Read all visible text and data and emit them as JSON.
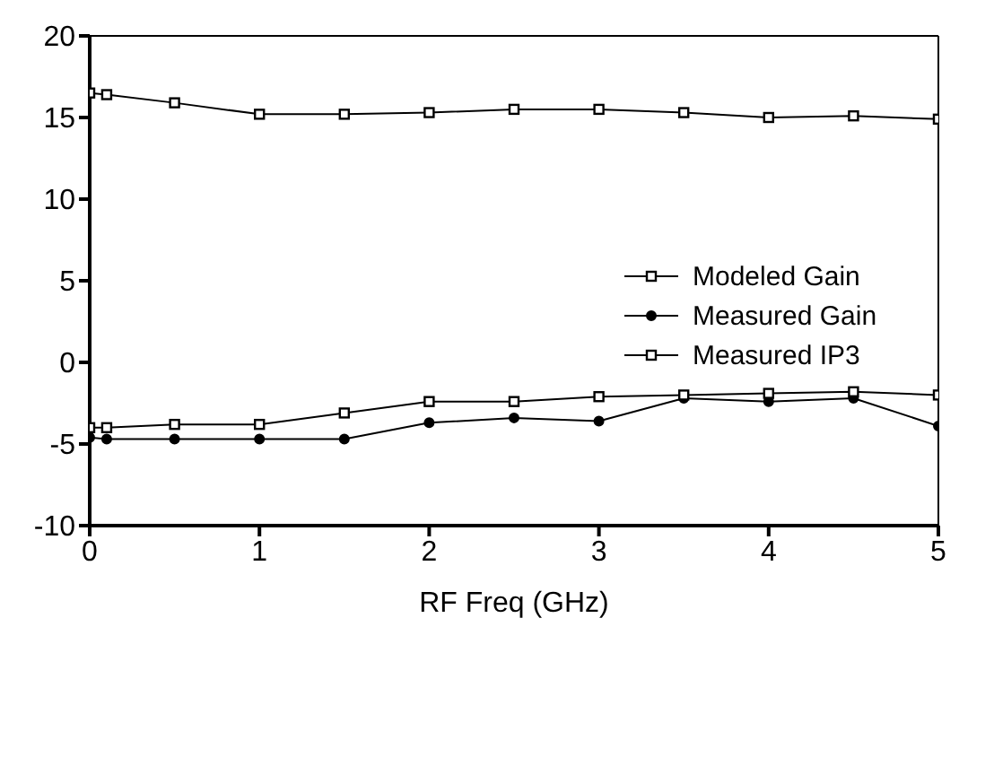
{
  "chart_data": {
    "type": "line",
    "xlabel": "RF Freq (GHz)",
    "x": [
      0,
      0.1,
      0.5,
      1,
      1.5,
      2,
      2.5,
      3,
      3.5,
      4,
      4.5,
      5
    ],
    "series": [
      {
        "name": "Modeled Gain",
        "color": "#000000",
        "marker": "square",
        "values": [
          -4.0,
          -4.0,
          -3.8,
          -3.8,
          -3.1,
          -2.4,
          -2.4,
          -2.1,
          -2.0,
          -1.9,
          -1.8,
          -2.0
        ]
      },
      {
        "name": "Measured Gain",
        "color": "#000000",
        "marker": "circle",
        "values": [
          -4.6,
          -4.7,
          -4.7,
          -4.7,
          -4.7,
          -3.7,
          -3.4,
          -3.6,
          -2.2,
          -2.4,
          -2.2,
          -3.9
        ]
      },
      {
        "name": "Measured IP3",
        "color": "#000000",
        "marker": "square",
        "values": [
          16.5,
          16.4,
          15.9,
          15.2,
          15.2,
          15.3,
          15.5,
          15.5,
          15.3,
          15.0,
          15.1,
          14.9
        ]
      }
    ],
    "xlim": [
      0,
      5
    ],
    "xticks": [
      0,
      1,
      2,
      3,
      4,
      5
    ],
    "ylim": [
      -10,
      20
    ],
    "yticks": [
      -10,
      -5,
      0,
      5,
      10,
      15,
      20
    ],
    "grid": false,
    "legend": "right"
  }
}
